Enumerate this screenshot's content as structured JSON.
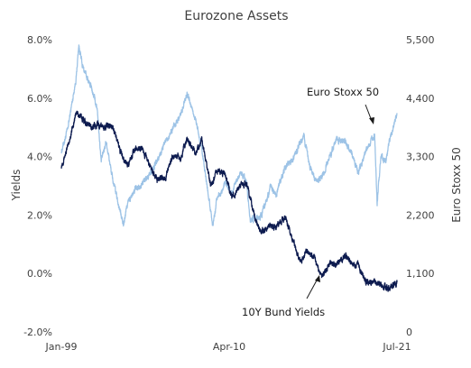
{
  "chart_data": {
    "type": "line",
    "title": "Eurozone Assets",
    "x_ticks": [
      "Jan-99",
      "Apr-10",
      "Jul-21"
    ],
    "x_range": [
      "1999-01",
      "2021-07"
    ],
    "y_left": {
      "label": "Yields",
      "ticks": [
        "8.0%",
        "6.0%",
        "4.0%",
        "2.0%",
        "0.0%",
        "-2.0%"
      ],
      "range": [
        -2.0,
        8.0
      ]
    },
    "y_right": {
      "label": "Euro Stoxx 50",
      "ticks": [
        "5,500",
        "4,400",
        "3,300",
        "2,200",
        "1,100",
        "0"
      ],
      "range": [
        0,
        5500
      ]
    },
    "grid": false,
    "series": [
      {
        "name": "10Y Bund Yields",
        "axis": "left",
        "color": "#0d1b4f",
        "points": [
          [
            "1999-01",
            3.7
          ],
          [
            "1999-06",
            4.3
          ],
          [
            "2000-01",
            5.5
          ],
          [
            "2000-06",
            5.3
          ],
          [
            "2001-01",
            5.0
          ],
          [
            "2001-06",
            5.1
          ],
          [
            "2002-01",
            5.0
          ],
          [
            "2002-06",
            5.1
          ],
          [
            "2003-01",
            4.1
          ],
          [
            "2003-06",
            3.7
          ],
          [
            "2004-01",
            4.3
          ],
          [
            "2004-06",
            4.3
          ],
          [
            "2005-01",
            3.6
          ],
          [
            "2005-06",
            3.2
          ],
          [
            "2006-01",
            3.3
          ],
          [
            "2006-06",
            4.0
          ],
          [
            "2007-01",
            4.0
          ],
          [
            "2007-06",
            4.6
          ],
          [
            "2008-01",
            4.1
          ],
          [
            "2008-06",
            4.6
          ],
          [
            "2009-01",
            3.0
          ],
          [
            "2009-06",
            3.5
          ],
          [
            "2010-01",
            3.4
          ],
          [
            "2010-06",
            2.6
          ],
          [
            "2011-01",
            3.0
          ],
          [
            "2011-06",
            3.1
          ],
          [
            "2012-01",
            1.9
          ],
          [
            "2012-06",
            1.4
          ],
          [
            "2013-01",
            1.6
          ],
          [
            "2013-06",
            1.6
          ],
          [
            "2014-01",
            1.9
          ],
          [
            "2014-06",
            1.3
          ],
          [
            "2015-01",
            0.4
          ],
          [
            "2015-06",
            0.8
          ],
          [
            "2016-01",
            0.5
          ],
          [
            "2016-06",
            -0.1
          ],
          [
            "2017-01",
            0.3
          ],
          [
            "2017-06",
            0.3
          ],
          [
            "2018-01",
            0.6
          ],
          [
            "2018-06",
            0.4
          ],
          [
            "2019-01",
            0.2
          ],
          [
            "2019-06",
            -0.3
          ],
          [
            "2020-01",
            -0.3
          ],
          [
            "2020-06",
            -0.4
          ],
          [
            "2021-01",
            -0.5
          ],
          [
            "2021-07",
            -0.3
          ]
        ]
      },
      {
        "name": "Euro Stoxx 50",
        "axis": "right",
        "color": "#9dc3e6",
        "points": [
          [
            "1999-01",
            3400
          ],
          [
            "1999-06",
            3800
          ],
          [
            "2000-01",
            4800
          ],
          [
            "2000-03",
            5400
          ],
          [
            "2000-06",
            5000
          ],
          [
            "2001-01",
            4600
          ],
          [
            "2001-06",
            4200
          ],
          [
            "2001-09",
            3200
          ],
          [
            "2002-01",
            3600
          ],
          [
            "2002-06",
            2900
          ],
          [
            "2003-03",
            2000
          ],
          [
            "2003-06",
            2400
          ],
          [
            "2004-01",
            2700
          ],
          [
            "2004-06",
            2800
          ],
          [
            "2005-01",
            3000
          ],
          [
            "2005-06",
            3200
          ],
          [
            "2006-01",
            3600
          ],
          [
            "2006-06",
            3800
          ],
          [
            "2007-01",
            4100
          ],
          [
            "2007-06",
            4500
          ],
          [
            "2008-01",
            4000
          ],
          [
            "2008-06",
            3400
          ],
          [
            "2009-03",
            2000
          ],
          [
            "2009-06",
            2500
          ],
          [
            "2010-01",
            2800
          ],
          [
            "2010-06",
            2600
          ],
          [
            "2011-01",
            3000
          ],
          [
            "2011-06",
            2800
          ],
          [
            "2011-09",
            2100
          ],
          [
            "2012-06",
            2200
          ],
          [
            "2013-01",
            2700
          ],
          [
            "2013-06",
            2600
          ],
          [
            "2014-01",
            3100
          ],
          [
            "2014-06",
            3200
          ],
          [
            "2015-04",
            3700
          ],
          [
            "2015-09",
            3100
          ],
          [
            "2016-02",
            2800
          ],
          [
            "2016-06",
            2900
          ],
          [
            "2017-01",
            3300
          ],
          [
            "2017-06",
            3600
          ],
          [
            "2018-01",
            3600
          ],
          [
            "2018-06",
            3400
          ],
          [
            "2018-12",
            3000
          ],
          [
            "2019-06",
            3400
          ],
          [
            "2020-01",
            3700
          ],
          [
            "2020-03",
            2400
          ],
          [
            "2020-06",
            3300
          ],
          [
            "2020-10",
            3200
          ],
          [
            "2021-01",
            3600
          ],
          [
            "2021-07",
            4100
          ]
        ]
      }
    ],
    "annotations": [
      {
        "text": "Euro Stoxx 50",
        "series": "Euro Stoxx 50"
      },
      {
        "text": "10Y Bund Yields",
        "series": "10Y Bund Yields"
      }
    ]
  }
}
